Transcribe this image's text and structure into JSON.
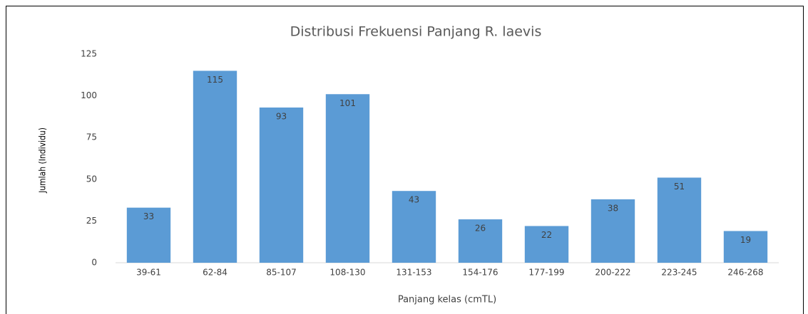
{
  "chart_data": {
    "type": "bar",
    "title": "Distribusi Frekuensi Panjang R. laevis",
    "y_label": "Jumlah (Individu)",
    "x_label": "Panjang kelas (cmTL)",
    "categories": [
      "39-61",
      "62-84",
      "85-107",
      "108-130",
      "131-153",
      "154-176",
      "177-199",
      "200-222",
      "223-245",
      "246-268"
    ],
    "values": [
      33,
      115,
      93,
      101,
      43,
      26,
      22,
      38,
      51,
      19
    ],
    "color": "#5b9bd5",
    "ylim": [
      0,
      125
    ],
    "yticks": [
      0,
      25,
      50,
      75,
      100,
      125
    ],
    "grid": false
  }
}
